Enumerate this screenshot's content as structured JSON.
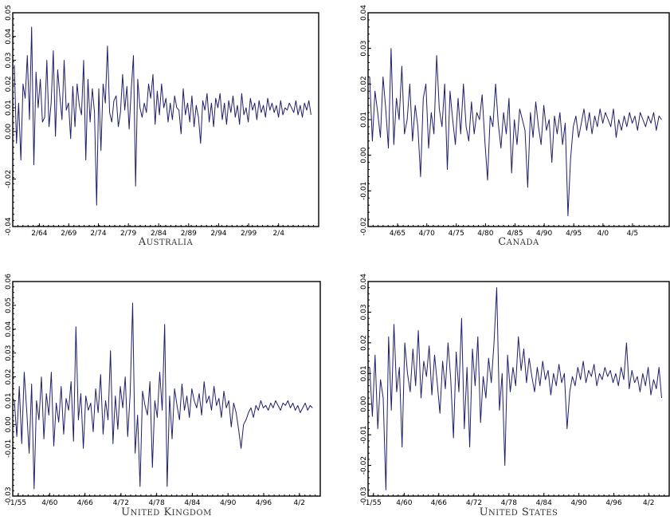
{
  "chart_data": [
    {
      "type": "line",
      "title": "Australia",
      "ylim": [
        -0.04,
        0.05
      ],
      "yticks": [
        -0.04,
        -0.02,
        0.0,
        0.01,
        0.02,
        0.03,
        0.04,
        0.05
      ],
      "ytick_labels": [
        "-0.04",
        "-0.02",
        "0.00",
        "0.01",
        "0.02",
        "0.03",
        "0.04",
        "0.05"
      ],
      "xtick_labels": [
        "2/64",
        "2/69",
        "2/74",
        "2/79",
        "2/84",
        "2/89",
        "2/94",
        "2/99",
        "2/4"
      ],
      "xtick_positions": [
        0.087,
        0.183,
        0.28,
        0.378,
        0.477,
        0.575,
        0.673,
        0.771,
        0.869
      ],
      "values": [
        0.028,
        -0.005,
        0.012,
        -0.012,
        0.02,
        0.014,
        0.032,
        0.005,
        0.044,
        -0.014,
        0.025,
        0.01,
        0.022,
        0.004,
        0.006,
        0.03,
        0.002,
        0.012,
        0.034,
        -0.002,
        0.026,
        0.015,
        0.005,
        0.03,
        0.009,
        0.012,
        -0.003,
        0.019,
        0.002,
        0.02,
        0.011,
        0.007,
        0.03,
        -0.012,
        0.022,
        0.004,
        0.018,
        0.008,
        -0.031,
        0.018,
        -0.008,
        0.02,
        0.012,
        0.036,
        0.008,
        0.004,
        0.013,
        0.015,
        0.002,
        0.008,
        0.024,
        0.009,
        0.019,
        0.001,
        0.018,
        0.032,
        -0.023,
        0.022,
        0.01,
        0.006,
        0.012,
        0.008,
        0.02,
        0.014,
        0.024,
        0.003,
        0.017,
        0.007,
        0.02,
        0.01,
        0.014,
        0.004,
        0.012,
        0.005,
        0.015,
        0.01,
        0.009,
        -0.001,
        0.018,
        0.007,
        0.012,
        0.004,
        0.015,
        0.002,
        0.011,
        0.006,
        -0.005,
        0.013,
        0.009,
        0.016,
        0.004,
        0.012,
        0.002,
        0.014,
        0.01,
        0.016,
        0.005,
        0.012,
        0.003,
        0.013,
        0.008,
        0.015,
        0.006,
        0.011,
        0.003,
        0.016,
        0.007,
        0.01,
        0.004,
        0.014,
        0.009,
        0.012,
        0.005,
        0.013,
        0.008,
        0.011,
        0.006,
        0.014,
        0.009,
        0.012,
        0.008,
        0.011,
        0.006,
        0.013,
        0.007,
        0.01,
        0.009,
        0.012,
        0.01,
        0.008,
        0.013,
        0.007,
        0.011,
        0.006,
        0.012,
        0.009,
        0.013,
        0.007
      ]
    },
    {
      "type": "line",
      "title": "Canada",
      "ylim": [
        -0.02,
        0.04
      ],
      "yticks": [
        -0.02,
        -0.01,
        0.0,
        0.01,
        0.02,
        0.03,
        0.04
      ],
      "ytick_labels": [
        "-0.02",
        "-0.01",
        "0.00",
        "0.01",
        "0.02",
        "0.03",
        "0.04"
      ],
      "xtick_labels": [
        "4/65",
        "4/70",
        "4/75",
        "4/80",
        "4/85",
        "4/90",
        "4/95",
        "4/0",
        "4/5"
      ],
      "xtick_positions": [
        0.098,
        0.195,
        0.293,
        0.39,
        0.488,
        0.585,
        0.683,
        0.78,
        0.878
      ],
      "values": [
        0.022,
        0.004,
        0.018,
        0.012,
        0.005,
        0.022,
        0.013,
        0.002,
        0.03,
        0.003,
        0.016,
        0.01,
        0.025,
        0.006,
        0.01,
        0.02,
        0.004,
        0.014,
        0.008,
        -0.006,
        0.016,
        0.02,
        0.002,
        0.012,
        0.006,
        0.028,
        0.013,
        0.008,
        0.02,
        -0.004,
        0.018,
        0.01,
        0.003,
        0.016,
        0.006,
        0.02,
        0.008,
        0.004,
        0.015,
        0.006,
        0.012,
        0.01,
        0.017,
        0.004,
        -0.007,
        0.011,
        0.008,
        0.02,
        0.009,
        0.002,
        0.012,
        0.006,
        0.016,
        -0.005,
        0.01,
        0.003,
        0.013,
        0.01,
        0.007,
        -0.009,
        0.012,
        0.005,
        0.015,
        0.008,
        0.003,
        0.014,
        0.007,
        0.01,
        -0.002,
        0.011,
        0.006,
        0.012,
        0.003,
        0.009,
        -0.017,
        -0.001,
        0.008,
        0.011,
        0.005,
        0.009,
        0.013,
        0.007,
        0.012,
        0.006,
        0.011,
        0.008,
        0.013,
        0.009,
        0.012,
        0.01,
        0.008,
        0.013,
        0.005,
        0.01,
        0.007,
        0.011,
        0.008,
        0.012,
        0.009,
        0.011,
        0.007,
        0.012,
        0.01,
        0.008,
        0.011,
        0.009,
        0.012,
        0.007,
        0.011,
        0.01
      ]
    },
    {
      "type": "line",
      "title": "United Kingdom",
      "ylim": [
        -0.03,
        0.06
      ],
      "yticks": [
        -0.03,
        -0.01,
        0.0,
        0.01,
        0.02,
        0.03,
        0.04,
        0.05,
        0.06
      ],
      "ytick_labels": [
        "-0.03",
        "-0.01",
        "0.00",
        "0.01",
        "0.02",
        "0.03",
        "0.04",
        "0.05",
        "0.06"
      ],
      "xtick_labels": [
        "1/55",
        "4/60",
        "4/66",
        "4/72",
        "4/78",
        "4/84",
        "4/90",
        "4/96",
        "4/2"
      ],
      "xtick_positions": [
        0.018,
        0.12,
        0.235,
        0.352,
        0.468,
        0.584,
        0.7,
        0.816,
        0.932
      ],
      "values": [
        0.01,
        -0.005,
        0.016,
        -0.008,
        0.022,
        0.006,
        -0.012,
        0.017,
        -0.027,
        0.01,
        0.002,
        0.02,
        -0.006,
        0.013,
        0.004,
        0.022,
        -0.009,
        0.009,
        0.001,
        0.016,
        -0.004,
        0.011,
        0.006,
        0.018,
        -0.007,
        0.041,
        0.002,
        0.013,
        -0.01,
        0.012,
        0.006,
        0.009,
        -0.003,
        0.015,
        0.005,
        0.021,
        -0.004,
        0.01,
        0.002,
        0.031,
        -0.008,
        0.012,
        -0.002,
        0.016,
        0.007,
        0.02,
        -0.005,
        0.013,
        0.051,
        -0.012,
        0.004,
        -0.026,
        0.014,
        0.008,
        0.004,
        0.018,
        -0.018,
        0.01,
        0.003,
        0.022,
        0.006,
        0.042,
        -0.026,
        0.012,
        -0.006,
        0.015,
        0.008,
        0.002,
        0.017,
        0.006,
        0.012,
        0.003,
        0.015,
        0.01,
        0.007,
        0.013,
        0.004,
        0.018,
        0.009,
        0.012,
        0.006,
        0.016,
        0.008,
        0.011,
        0.003,
        0.014,
        0.007,
        0.01,
        -0.001,
        0.009,
        0.005,
        -0.002,
        -0.01,
        0.0,
        0.002,
        0.005,
        0.007,
        0.003,
        0.008,
        0.006,
        0.01,
        0.007,
        0.008,
        0.006,
        0.009,
        0.007,
        0.01,
        0.008,
        0.006,
        0.009,
        0.008,
        0.01,
        0.007,
        0.009,
        0.006,
        0.008,
        0.005,
        0.007,
        0.009,
        0.006,
        0.008,
        0.007
      ]
    },
    {
      "type": "line",
      "title": "United States",
      "ylim": [
        -0.03,
        0.04
      ],
      "yticks": [
        -0.03,
        -0.02,
        -0.01,
        0.0,
        0.01,
        0.02,
        0.03,
        0.04
      ],
      "ytick_labels": [
        "-0.03",
        "-0.02",
        "-0.01",
        "0.00",
        "0.01",
        "0.02",
        "0.03",
        "0.04"
      ],
      "xtick_labels": [
        "1/55",
        "4/60",
        "4/66",
        "4/72",
        "4/78",
        "4/84",
        "4/90",
        "4/96",
        "4/2"
      ],
      "xtick_positions": [
        0.018,
        0.12,
        0.235,
        0.352,
        0.468,
        0.584,
        0.7,
        0.816,
        0.932
      ],
      "values": [
        0.012,
        -0.004,
        0.016,
        -0.008,
        0.008,
        0.002,
        -0.028,
        0.022,
        -0.002,
        0.026,
        0.004,
        0.012,
        -0.014,
        0.02,
        0.01,
        0.004,
        0.018,
        0.006,
        0.024,
        0.002,
        0.014,
        0.009,
        0.019,
        0.003,
        0.016,
        0.007,
        -0.003,
        0.014,
        0.005,
        0.02,
        0.008,
        -0.011,
        0.017,
        0.004,
        0.028,
        -0.008,
        0.012,
        -0.014,
        0.018,
        0.006,
        0.022,
        -0.006,
        0.009,
        0.002,
        0.015,
        0.007,
        0.02,
        0.038,
        -0.002,
        0.01,
        -0.02,
        0.016,
        0.004,
        0.012,
        0.006,
        0.022,
        0.011,
        0.018,
        0.007,
        0.015,
        0.009,
        0.004,
        0.012,
        0.006,
        0.014,
        0.008,
        0.011,
        0.003,
        0.01,
        0.006,
        0.013,
        0.007,
        0.01,
        -0.008,
        0.004,
        0.009,
        0.006,
        0.012,
        0.008,
        0.014,
        0.007,
        0.011,
        0.009,
        0.013,
        0.006,
        0.01,
        0.008,
        0.012,
        0.009,
        0.011,
        0.007,
        0.01,
        0.006,
        0.012,
        0.008,
        0.02,
        0.005,
        0.011,
        0.007,
        0.009,
        0.004,
        0.01,
        0.006,
        0.012,
        0.003,
        0.008,
        0.005,
        0.012,
        0.002
      ]
    }
  ]
}
